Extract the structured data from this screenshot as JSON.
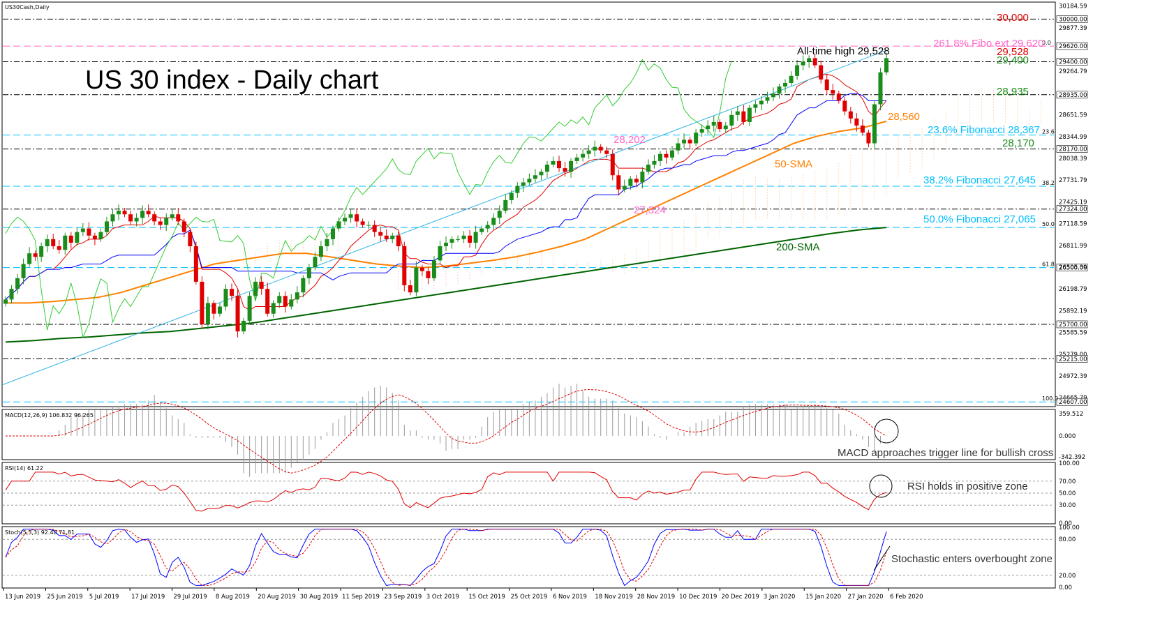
{
  "symbol_label": "US30Cash,Daily",
  "title": "US 30 index - Daily chart",
  "colors": {
    "bg": "#ffffff",
    "up": "#1a8c1a",
    "down": "#e00000",
    "ichimoku_tenkan": "#e00000",
    "ichimoku_kijun": "#0000ff",
    "chikou": "#33cc33",
    "sma50": "#ff8000",
    "sma200": "#006400",
    "trendline": "#33b5e5",
    "fibo": "#00bfff",
    "fibo_ext": "#ff66cc"
  },
  "x_dates": [
    "13 Jun 2019",
    "25 Jun 2019",
    "5 Jul 2019",
    "17 Jul 2019",
    "29 Jul 2019",
    "8 Aug 2019",
    "20 Aug 2019",
    "30 Aug 2019",
    "11 Sep 2019",
    "23 Sep 2019",
    "3 Oct 2019",
    "15 Oct 2019",
    "25 Oct 2019",
    "6 Nov 2019",
    "18 Nov 2019",
    "28 Nov 2019",
    "10 Dec 2019",
    "20 Dec 2019",
    "3 Jan 2020",
    "15 Jan 2020",
    "27 Jan 2020",
    "6 Feb 2020"
  ],
  "price_ticks": [
    "30184.59",
    "30000.00",
    "29877.39",
    "29620.00",
    "29400.00",
    "29264.79",
    "28935.00",
    "28651.59",
    "28344.99",
    "28170.00",
    "28038.39",
    "27731.79",
    "27425.19",
    "27324.00",
    "27118.59",
    "26811.99",
    "26500.00",
    "26505.39",
    "26198.79",
    "25892.19",
    "25700.00",
    "25585.59",
    "25279.00",
    "25215.00",
    "24972.39",
    "24665.79",
    "24607.00"
  ],
  "fibo_tags": [
    "0.0",
    "23.6",
    "38.2",
    "50.0",
    "61.8",
    "100.0"
  ],
  "annotations": {
    "level_30000": "30,000",
    "fibo_ext": "261.8% Fibo ext 29,620",
    "ath": "All-time high 29,528",
    "level_29528": "29,528",
    "level_29400": "29,400",
    "level_28935": "28,935",
    "sma_value": "28,560",
    "fibo_236": "23.6% Fibonacci 28,367",
    "level_28170": "28,170",
    "level_28202": "28,202",
    "sma50_label": "50-SMA",
    "fibo_382": "38.2% Fibonacci 27,645",
    "level_27324": "27,324",
    "fibo_50": "50.0% Fibonacci 27,065",
    "sma200_label": "200-SMA"
  },
  "macd": {
    "label": "MACD(12,26,9) 106.832 96.265",
    "ticks": [
      "359.512",
      "0.000",
      "-342.392"
    ],
    "note": "MACD approaches trigger line for bullish cross"
  },
  "rsi": {
    "label": "RSI(14) 61.22",
    "ticks": [
      "100.00",
      "70.00",
      "50.00",
      "30.00",
      "0.00"
    ],
    "note": "RSI holds in positive zone"
  },
  "stoch": {
    "label": "Stoch(5,3,3) 92.40 71.81",
    "ticks": [
      "100.00",
      "80.00",
      "20.00",
      "0.00"
    ],
    "note": "Stochastic enters overbought zone"
  },
  "chart_data": {
    "type": "candlestick",
    "title": "US 30 index - Daily chart",
    "y_range": [
      24550,
      30230
    ],
    "ohlc_close_approx": [
      26050,
      26200,
      26350,
      26550,
      26700,
      26650,
      26800,
      26900,
      26800,
      26750,
      26950,
      26850,
      27000,
      27050,
      26950,
      26900,
      27000,
      27150,
      27250,
      27300,
      27250,
      27150,
      27200,
      27300,
      27250,
      27150,
      27100,
      27200,
      27250,
      27150,
      27000,
      26800,
      26300,
      25700,
      26000,
      25850,
      25950,
      26200,
      26100,
      25600,
      25750,
      26100,
      26300,
      26200,
      25850,
      26000,
      26100,
      25950,
      26050,
      26150,
      26350,
      26500,
      26650,
      26800,
      26900,
      27050,
      27150,
      27200,
      27250,
      27150,
      27100,
      27100,
      27000,
      26950,
      26900,
      26950,
      26800,
      26250,
      26150,
      26500,
      26450,
      26350,
      26600,
      26800,
      26850,
      26900,
      26900,
      26950,
      26850,
      27000,
      27050,
      27100,
      27200,
      27300,
      27450,
      27550,
      27650,
      27700,
      27750,
      27800,
      27850,
      27950,
      28000,
      27900,
      27850,
      28000,
      28050,
      28100,
      28150,
      28200,
      28150,
      28100,
      27800,
      27600,
      27650,
      27750,
      27700,
      27850,
      27950,
      28000,
      28100,
      28050,
      28150,
      28250,
      28300,
      28250,
      28400,
      28450,
      28500,
      28550,
      28450,
      28500,
      28650,
      28700,
      28550,
      28750,
      28800,
      28850,
      28900,
      28950,
      29050,
      29100,
      29200,
      29350,
      29400,
      29450,
      29350,
      29150,
      29000,
      28950,
      28850,
      28700,
      28600,
      28500,
      28400,
      28250,
      28800,
      29250,
      29450
    ],
    "sma50_approx": [
      26000,
      26000,
      26020,
      26050,
      26080,
      26150,
      26250,
      26350,
      26450,
      26550,
      26600,
      26650,
      26700,
      26700,
      26650,
      26600,
      26550,
      26520,
      26500,
      26520,
      26560,
      26600,
      26650,
      26720,
      26800,
      26900,
      27050,
      27200,
      27350,
      27500,
      27650,
      27800,
      27950,
      28100,
      28250,
      28350,
      28420,
      28470,
      28560
    ],
    "sma200_approx": [
      25450,
      25470,
      25500,
      25520,
      25550,
      25580,
      25600,
      25640,
      25680,
      25720,
      25780,
      25840,
      25900,
      25960,
      26020,
      26080,
      26140,
      26200,
      26260,
      26320,
      26380,
      26440,
      26500,
      26560,
      26620,
      26680,
      26740,
      26800,
      26860,
      26920,
      26980,
      27030,
      27065
    ],
    "horizontal_levels": [
      30000,
      29620,
      29400,
      28935,
      28367,
      28170,
      27645,
      27324,
      27065,
      26500,
      25700,
      25215,
      24607
    ]
  }
}
